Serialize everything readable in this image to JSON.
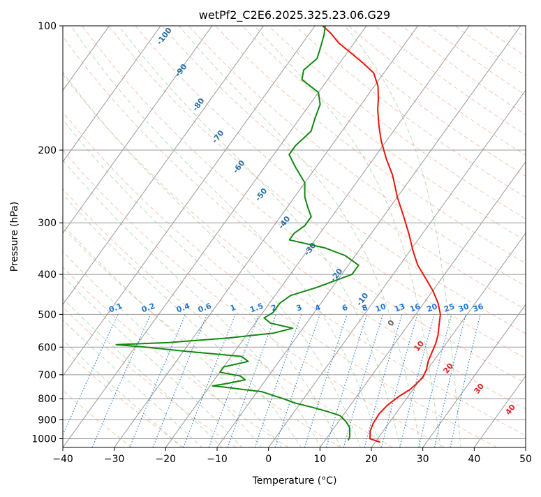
{
  "chart_data": {
    "type": "line",
    "title": "wetPf2_C2E6.2025.325.23.06.G29",
    "xlabel": "Temperature (°C)",
    "ylabel": "Pressure (hPa)",
    "xlim": [
      -40,
      50
    ],
    "ylim": [
      1050,
      100
    ],
    "y_scale": "log",
    "skew": true,
    "x_ticks": [
      "−40",
      "−30",
      "−20",
      "−10",
      "0",
      "10",
      "20",
      "30",
      "40",
      "50"
    ],
    "y_ticks": [
      100,
      200,
      300,
      400,
      500,
      600,
      700,
      800,
      900,
      1000
    ],
    "grid": true,
    "colors": {
      "temperature": "#e8140a",
      "dewpoint": "#118811",
      "isotherm": "#999999",
      "dry_adiabat": "#f4a582",
      "moist_adiabat": "#7fbf7b",
      "mixing_ratio": "#1f77d4",
      "isotherm_label": "#2a70a8",
      "adiabat_label": "#d62728"
    },
    "series": [
      {
        "name": "",
        "role": "temperature",
        "points": [
          [
            1020,
            21
          ],
          [
            1000,
            18.5
          ],
          [
            960,
            17.5
          ],
          [
            920,
            17
          ],
          [
            870,
            16.8
          ],
          [
            830,
            17.2
          ],
          [
            790,
            18.2
          ],
          [
            760,
            19.4
          ],
          [
            740,
            19.8
          ],
          [
            710,
            20.2
          ],
          [
            680,
            19.8
          ],
          [
            650,
            19.0
          ],
          [
            620,
            18.5
          ],
          [
            590,
            18.0
          ],
          [
            560,
            17.2
          ],
          [
            530,
            16.0
          ],
          [
            500,
            14.8
          ],
          [
            470,
            12.8
          ],
          [
            440,
            10.2
          ],
          [
            410,
            7.0
          ],
          [
            380,
            3.5
          ],
          [
            350,
            0.5
          ],
          [
            320,
            -2.5
          ],
          [
            290,
            -6
          ],
          [
            260,
            -10
          ],
          [
            230,
            -14
          ],
          [
            210,
            -17.5
          ],
          [
            190,
            -21
          ],
          [
            175,
            -23.5
          ],
          [
            160,
            -26
          ],
          [
            150,
            -27.5
          ],
          [
            140,
            -29.3
          ],
          [
            130,
            -32
          ],
          [
            122,
            -36
          ],
          [
            115,
            -40
          ],
          [
            110,
            -43
          ],
          [
            104,
            -46
          ],
          [
            100,
            -48.5
          ]
        ]
      },
      {
        "name": "",
        "role": "dewpoint",
        "points": [
          [
            1010,
            14.5
          ],
          [
            990,
            14.3
          ],
          [
            970,
            13.8
          ],
          [
            940,
            13.0
          ],
          [
            910,
            11.5
          ],
          [
            880,
            9.5
          ],
          [
            860,
            6.5
          ],
          [
            840,
            3
          ],
          [
            820,
            -1
          ],
          [
            800,
            -4
          ],
          [
            785,
            -6.5
          ],
          [
            770,
            -9
          ],
          [
            760,
            -13
          ],
          [
            750,
            -17
          ],
          [
            745,
            -19.5
          ],
          [
            735,
            -17
          ],
          [
            720,
            -14
          ],
          [
            705,
            -15.5
          ],
          [
            690,
            -20
          ],
          [
            670,
            -20
          ],
          [
            650,
            -16
          ],
          [
            632,
            -18
          ],
          [
            615,
            -29
          ],
          [
            600,
            -38
          ],
          [
            592,
            -44
          ],
          [
            585,
            -34
          ],
          [
            570,
            -23
          ],
          [
            555,
            -15
          ],
          [
            540,
            -12
          ],
          [
            525,
            -17
          ],
          [
            510,
            -19
          ],
          [
            495,
            -18
          ],
          [
            470,
            -18
          ],
          [
            450,
            -17
          ],
          [
            430,
            -13
          ],
          [
            400,
            -8
          ],
          [
            380,
            -8
          ],
          [
            360,
            -12
          ],
          [
            345,
            -17
          ],
          [
            330,
            -25
          ],
          [
            318,
            -25
          ],
          [
            305,
            -24
          ],
          [
            290,
            -24
          ],
          [
            275,
            -26
          ],
          [
            260,
            -28
          ],
          [
            240,
            -30
          ],
          [
            220,
            -34
          ],
          [
            205,
            -37
          ],
          [
            195,
            -37
          ],
          [
            180,
            -36
          ],
          [
            168,
            -37
          ],
          [
            155,
            -38
          ],
          [
            145,
            -40
          ],
          [
            135,
            -45
          ],
          [
            128,
            -46
          ],
          [
            120,
            -45
          ],
          [
            112,
            -46
          ],
          [
            105,
            -47
          ],
          [
            100,
            -48
          ]
        ]
      }
    ],
    "isotherm_labels": [
      "-100",
      "-90",
      "-80",
      "-70",
      "-60",
      "-50",
      "-40",
      "-30",
      "-20",
      "-10",
      "0",
      "10",
      "20",
      "30",
      "40"
    ],
    "mixing_ratio_labels": [
      "0.1",
      "0.2",
      "0.4",
      "0.6",
      "1",
      "1.5",
      "2",
      "3",
      "4",
      "6",
      "8",
      "10",
      "13",
      "16",
      "20",
      "25",
      "30",
      "36"
    ]
  }
}
